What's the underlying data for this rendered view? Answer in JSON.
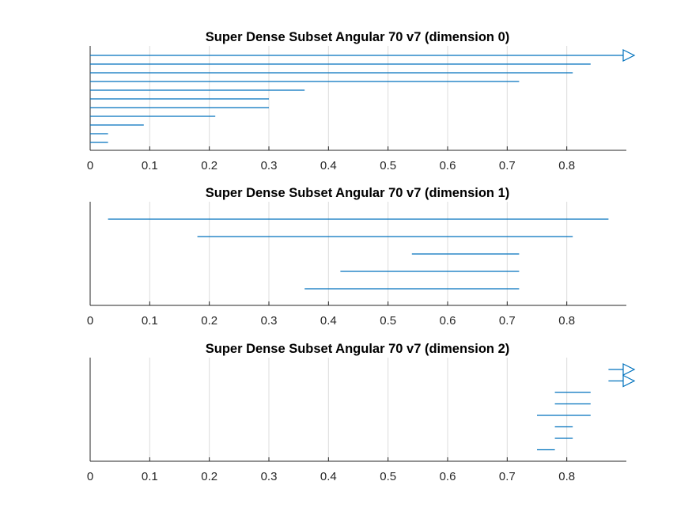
{
  "chart_data": [
    {
      "type": "interval",
      "title": "Super Dense Subset Angular 70 v7 (dimension 0)",
      "xlim": [
        0,
        0.9
      ],
      "xticks": [
        0,
        0.1,
        0.2,
        0.3,
        0.4,
        0.5,
        0.6,
        0.7,
        0.8
      ],
      "tick_labels": [
        "0",
        "0.1",
        "0.2",
        "0.3",
        "0.4",
        "0.5",
        "0.6",
        "0.7",
        "0.8"
      ],
      "grid": "x",
      "intervals": [
        {
          "start": 0,
          "end": 0.9,
          "arrow": true
        },
        {
          "start": 0,
          "end": 0.84
        },
        {
          "start": 0,
          "end": 0.81
        },
        {
          "start": 0,
          "end": 0.72
        },
        {
          "start": 0,
          "end": 0.36
        },
        {
          "start": 0,
          "end": 0.3
        },
        {
          "start": 0,
          "end": 0.3
        },
        {
          "start": 0,
          "end": 0.21
        },
        {
          "start": 0,
          "end": 0.09
        },
        {
          "start": 0,
          "end": 0.03
        },
        {
          "start": 0,
          "end": 0.03
        }
      ]
    },
    {
      "type": "interval",
      "title": "Super Dense Subset Angular 70 v7 (dimension 1)",
      "xlim": [
        0,
        0.9
      ],
      "xticks": [
        0,
        0.1,
        0.2,
        0.3,
        0.4,
        0.5,
        0.6,
        0.7,
        0.8
      ],
      "tick_labels": [
        "0",
        "0.1",
        "0.2",
        "0.3",
        "0.4",
        "0.5",
        "0.6",
        "0.7",
        "0.8"
      ],
      "grid": "x",
      "intervals": [
        {
          "start": 0.03,
          "end": 0.87
        },
        {
          "start": 0.18,
          "end": 0.81
        },
        {
          "start": 0.54,
          "end": 0.72
        },
        {
          "start": 0.42,
          "end": 0.72
        },
        {
          "start": 0.36,
          "end": 0.72
        }
      ]
    },
    {
      "type": "interval",
      "title": "Super Dense Subset Angular 70 v7 (dimension 2)",
      "xlim": [
        0,
        0.9
      ],
      "xticks": [
        0,
        0.1,
        0.2,
        0.3,
        0.4,
        0.5,
        0.6,
        0.7,
        0.8
      ],
      "tick_labels": [
        "0",
        "0.1",
        "0.2",
        "0.3",
        "0.4",
        "0.5",
        "0.6",
        "0.7",
        "0.8"
      ],
      "grid": "x",
      "intervals": [
        {
          "start": 0.87,
          "end": 0.9,
          "arrow": true
        },
        {
          "start": 0.87,
          "end": 0.9,
          "arrow": true
        },
        {
          "start": 0.78,
          "end": 0.84
        },
        {
          "start": 0.78,
          "end": 0.84
        },
        {
          "start": 0.75,
          "end": 0.84
        },
        {
          "start": 0.78,
          "end": 0.81
        },
        {
          "start": 0.78,
          "end": 0.81
        },
        {
          "start": 0.75,
          "end": 0.78
        }
      ]
    }
  ],
  "colors": {
    "interval": "#0072BD",
    "axis": "#262626",
    "grid": "#dcdcdc"
  }
}
